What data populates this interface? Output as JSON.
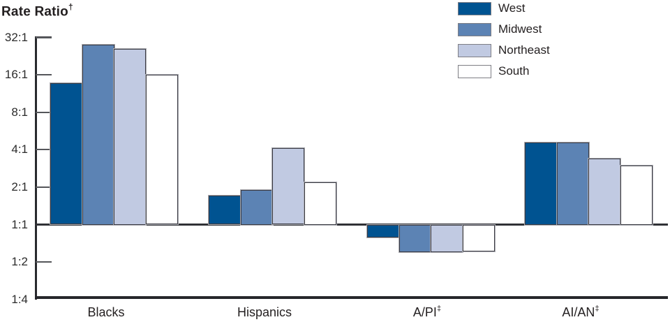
{
  "title": {
    "text": "Rate Ratio",
    "sup": "†"
  },
  "legend": {
    "items": [
      {
        "label": "West",
        "color": "#005391"
      },
      {
        "label": "Midwest",
        "color": "#5c83b4"
      },
      {
        "label": "Northeast",
        "color": "#c1cae2"
      },
      {
        "label": "South",
        "color": "#ffffff"
      }
    ]
  },
  "chart_data": {
    "type": "bar",
    "scale": "log2",
    "title": "Rate Ratio†",
    "xlabel": "",
    "ylabel": "Rate Ratio†",
    "grid": false,
    "legend_position": "top-center",
    "ylim": [
      0.25,
      32
    ],
    "y_ticks": [
      "32:1",
      "16:1",
      "8:1",
      "4:1",
      "2:1",
      "1:1",
      "1:2",
      "1:4"
    ],
    "y_tick_values": [
      32,
      16,
      8,
      4,
      2,
      1,
      0.5,
      0.25
    ],
    "baseline_value": 1,
    "categories": [
      {
        "label": "Blacks",
        "sup": ""
      },
      {
        "label": "Hispanics",
        "sup": ""
      },
      {
        "label": "A/PI",
        "sup": "‡"
      },
      {
        "label": "AI/AN",
        "sup": "‡"
      }
    ],
    "series": [
      {
        "name": "West",
        "color": "#005391",
        "values": [
          13.7,
          1.7,
          0.79,
          4.6
        ]
      },
      {
        "name": "Midwest",
        "color": "#5c83b4",
        "values": [
          28.0,
          1.9,
          0.6,
          4.6
        ]
      },
      {
        "name": "Northeast",
        "color": "#c1cae2",
        "values": [
          26.0,
          4.1,
          0.6,
          3.4
        ]
      },
      {
        "name": "South",
        "color": "#ffffff",
        "values": [
          16.0,
          2.2,
          0.61,
          3.0
        ]
      }
    ]
  }
}
